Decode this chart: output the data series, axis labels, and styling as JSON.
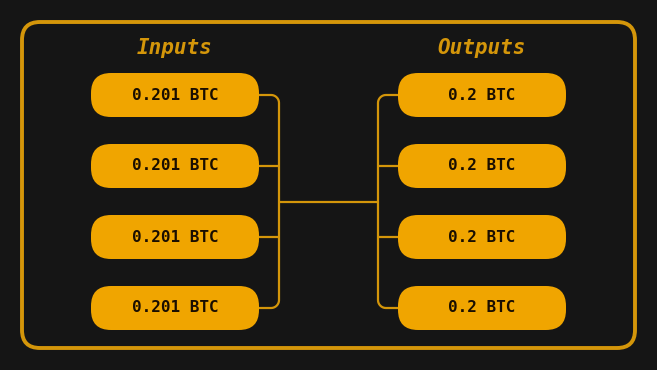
{
  "bg_color": "#151515",
  "box_bg_color": "#F0A500",
  "box_text_color": "#1a0e00",
  "border_color": "#D4960A",
  "line_color": "#D4960A",
  "header_color": "#D4960A",
  "inputs": [
    "0.201 BTC",
    "0.201 BTC",
    "0.201 BTC",
    "0.201 BTC"
  ],
  "outputs": [
    "0.2 BTC",
    "0.2 BTC",
    "0.2 BTC",
    "0.2 BTC"
  ],
  "input_header": "Inputs",
  "output_header": "Outputs",
  "figsize": [
    6.57,
    3.7
  ],
  "dpi": 100
}
